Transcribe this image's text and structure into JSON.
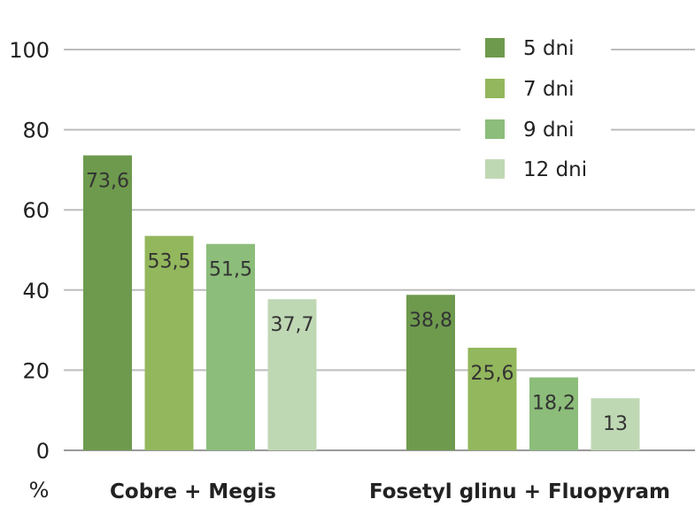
{
  "chart_data": {
    "type": "bar",
    "categories": [
      "Cobre + Megis",
      "Fosetyl glinu + Fluopyram"
    ],
    "series": [
      {
        "name": "5 dni",
        "values": [
          73.6,
          38.8
        ],
        "labels": [
          "73,6",
          "38,8"
        ],
        "color": "#6e9a4e"
      },
      {
        "name": "7 dni",
        "values": [
          53.5,
          25.6
        ],
        "labels": [
          "53,5",
          "25,6"
        ],
        "color": "#93b75c"
      },
      {
        "name": "9 dni",
        "values": [
          51.5,
          18.2
        ],
        "labels": [
          "51,5",
          "18,2"
        ],
        "color": "#8cbd7a"
      },
      {
        "name": "12 dni",
        "values": [
          37.7,
          13
        ],
        "labels": [
          "37,7",
          "13"
        ],
        "color": "#bfd8b4"
      }
    ],
    "ylabel": "%",
    "ylim": [
      0,
      100
    ],
    "yticks": [
      0,
      20,
      40,
      60,
      80,
      100
    ],
    "grid": true,
    "legend": "top-right"
  }
}
